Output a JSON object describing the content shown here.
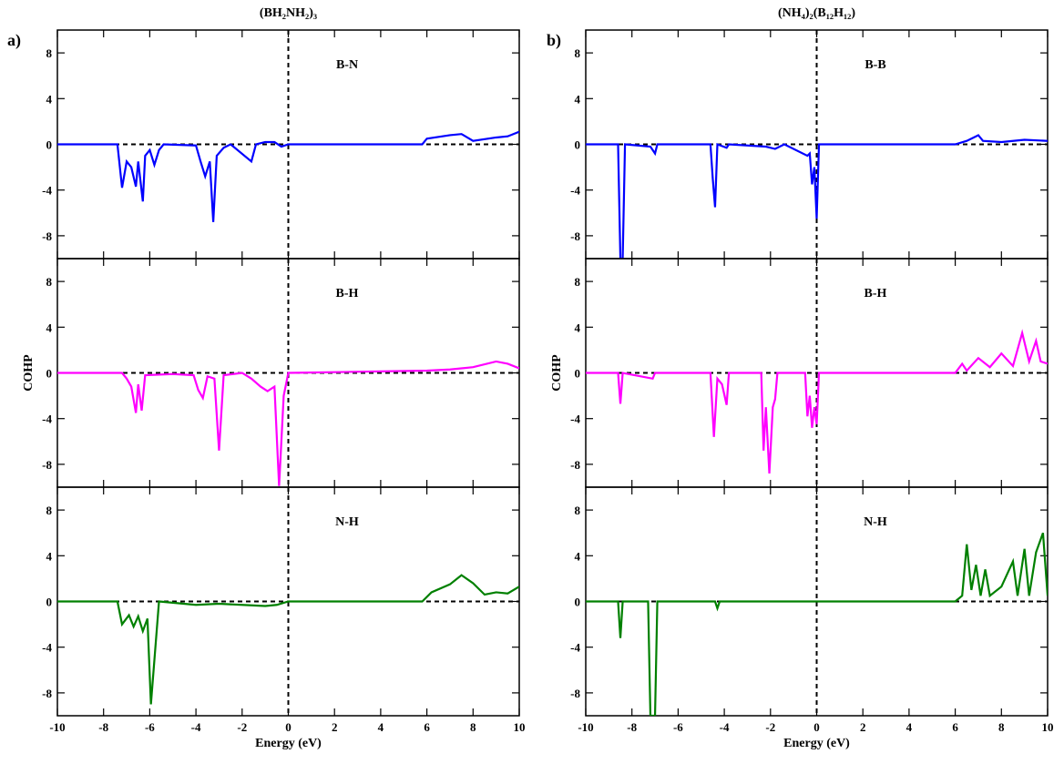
{
  "chart_data": [
    {
      "type": "line",
      "title": "(BH₂NH₂)₃",
      "panel_label": "a)",
      "annotation": "B-N",
      "x": [
        -10,
        -7.4,
        -7.2,
        -7.0,
        -6.8,
        -6.6,
        -6.5,
        -6.3,
        -6.2,
        -6.0,
        -5.8,
        -5.6,
        -5.4,
        -4,
        -3.8,
        -3.6,
        -3.4,
        -3.25,
        -3.1,
        -2.8,
        -2.5,
        -1.6,
        -1.4,
        -1,
        -0.6,
        -0.3,
        0,
        5.8,
        6,
        7,
        7.5,
        8,
        9,
        9.5,
        10
      ],
      "series": [
        {
          "color": "#0000ff",
          "values": [
            0,
            0,
            -3.8,
            -1.5,
            -2,
            -3.7,
            -1.5,
            -5,
            -1,
            -0.5,
            -1.8,
            -0.5,
            0,
            -0.1,
            -1.5,
            -2.8,
            -1.5,
            -6.8,
            -1,
            -0.3,
            0,
            -1.5,
            0,
            0.2,
            0.2,
            -0.2,
            0,
            0,
            0.5,
            0.8,
            0.9,
            0.3,
            0.6,
            0.7,
            1.1
          ]
        }
      ],
      "xlim": [
        -10,
        10
      ],
      "ylim": [
        -10,
        10
      ],
      "xticks": [
        -10,
        -8,
        -6,
        -4,
        -2,
        0,
        2,
        4,
        6,
        8,
        10
      ],
      "yticks": [
        -8,
        -4,
        0,
        4,
        8
      ]
    },
    {
      "type": "line",
      "panel_label": "b)",
      "title": "(NH₄)₂(B₁₂H₁₂)",
      "annotation": "B-B",
      "x": [
        -10,
        -8.6,
        -8.5,
        -8.4,
        -8.3,
        -7.2,
        -7,
        -6.9,
        -4.6,
        -4.5,
        -4.4,
        -4.3,
        -3.9,
        -3.8,
        -2.2,
        -1.8,
        -1.4,
        -0.4,
        -0.3,
        -0.2,
        -0.1,
        0,
        0.1,
        6,
        6.5,
        7,
        7.2,
        8,
        9,
        10
      ],
      "series": [
        {
          "color": "#0000ff",
          "values": [
            0,
            0,
            -10,
            -10,
            0,
            -0.2,
            -0.8,
            0,
            0,
            -3,
            -5.5,
            0,
            -0.3,
            0,
            -0.2,
            -0.4,
            0,
            -1,
            -0.8,
            -3.5,
            -2,
            -6.5,
            0,
            0,
            0.3,
            0.8,
            0.3,
            0.2,
            0.4,
            0.3
          ]
        }
      ],
      "xlim": [
        -10,
        10
      ],
      "ylim": [
        -10,
        10
      ],
      "xticks": [
        -10,
        -8,
        -6,
        -4,
        -2,
        0,
        2,
        4,
        6,
        8,
        10
      ],
      "yticks": [
        -8,
        -4,
        0,
        4,
        8
      ]
    },
    {
      "type": "line",
      "annotation": "B-H",
      "ylabel": "COHP",
      "x": [
        -10,
        -7.2,
        -7,
        -6.8,
        -6.6,
        -6.5,
        -6.35,
        -6.2,
        -5,
        -4.1,
        -3.9,
        -3.7,
        -3.5,
        -3.2,
        -3,
        -2.8,
        -2,
        -1.6,
        -1.2,
        -0.9,
        -0.6,
        -0.4,
        -0.2,
        0,
        6,
        7,
        8,
        9,
        9.5,
        10
      ],
      "series": [
        {
          "color": "#ff00ff",
          "values": [
            0,
            0,
            -0.5,
            -1.2,
            -3.5,
            -1,
            -3.3,
            -0.2,
            -0.1,
            -0.2,
            -1.5,
            -2.2,
            -0.3,
            -0.5,
            -6.8,
            -0.2,
            0,
            -0.5,
            -1.2,
            -1.6,
            -1.2,
            -9.9,
            -2,
            0,
            0.2,
            0.3,
            0.5,
            1,
            0.8,
            0.4
          ]
        }
      ],
      "xlim": [
        -10,
        10
      ],
      "ylim": [
        -10,
        10
      ],
      "xticks": [
        -10,
        -8,
        -6,
        -4,
        -2,
        0,
        2,
        4,
        6,
        8,
        10
      ],
      "yticks": [
        -8,
        -4,
        0,
        4,
        8
      ]
    },
    {
      "type": "line",
      "annotation": "B-H",
      "ylabel": "COHP",
      "x": [
        -10,
        -8.6,
        -8.5,
        -8.4,
        -7.1,
        -7,
        -4.6,
        -4.45,
        -4.3,
        -4.1,
        -3.9,
        -3.8,
        -2.4,
        -2.3,
        -2.2,
        -2.05,
        -1.9,
        -1.8,
        -1.7,
        -0.5,
        -0.4,
        -0.3,
        -0.2,
        -0.1,
        0,
        0.1,
        6,
        6.3,
        6.5,
        7,
        7.5,
        8,
        8.5,
        8.9,
        9.2,
        9.5,
        9.7,
        10
      ],
      "series": [
        {
          "color": "#ff00ff",
          "values": [
            0,
            0,
            -2.7,
            0,
            -0.5,
            0,
            0,
            -5.6,
            -0.5,
            -1,
            -2.8,
            0,
            0,
            -6.8,
            -3,
            -8.8,
            -3,
            -2.3,
            0,
            0,
            -3.8,
            -2,
            -4.8,
            -3,
            -4.5,
            0,
            0,
            0.8,
            0.2,
            1.3,
            0.5,
            1.7,
            0.6,
            3.5,
            1,
            2.8,
            1,
            0.8
          ]
        }
      ],
      "xlim": [
        -10,
        10
      ],
      "ylim": [
        -10,
        10
      ],
      "xticks": [
        -10,
        -8,
        -6,
        -4,
        -2,
        0,
        2,
        4,
        6,
        8,
        10
      ],
      "yticks": [
        -8,
        -4,
        0,
        4,
        8
      ]
    },
    {
      "type": "line",
      "annotation": "N-H",
      "xlabel": "Energy (eV)",
      "x": [
        -10,
        -7.4,
        -7.2,
        -6.9,
        -6.7,
        -6.5,
        -6.3,
        -6.1,
        -5.95,
        -5.6,
        -4,
        -3,
        -2,
        -1,
        -0.5,
        0,
        5.8,
        6.2,
        7,
        7.5,
        8,
        8.5,
        9,
        9.5,
        10
      ],
      "series": [
        {
          "color": "#008000",
          "values": [
            0,
            0,
            -2,
            -1.2,
            -2.2,
            -1.3,
            -2.6,
            -1.5,
            -9,
            0,
            -0.3,
            -0.2,
            -0.3,
            -0.4,
            -0.3,
            0,
            0,
            0.8,
            1.5,
            2.3,
            1.6,
            0.6,
            0.8,
            0.7,
            1.3
          ]
        }
      ],
      "xlim": [
        -10,
        10
      ],
      "ylim": [
        -10,
        10
      ],
      "xticks": [
        -10,
        -8,
        -6,
        -4,
        -2,
        0,
        2,
        4,
        6,
        8,
        10
      ],
      "yticks": [
        -8,
        -4,
        0,
        4,
        8
      ]
    },
    {
      "type": "line",
      "annotation": "N-H",
      "xlabel": "Energy (eV)",
      "x": [
        -10,
        -8.6,
        -8.5,
        -8.4,
        -7.3,
        -7.2,
        -7,
        -6.9,
        -4.4,
        -4.3,
        -4.2,
        6,
        6.3,
        6.5,
        6.7,
        6.9,
        7.1,
        7.3,
        7.5,
        8,
        8.5,
        8.7,
        9,
        9.2,
        9.5,
        9.8,
        10
      ],
      "series": [
        {
          "color": "#008000",
          "values": [
            0,
            0,
            -3.2,
            0,
            0,
            -10,
            -10,
            0,
            0,
            -0.6,
            0,
            0,
            0.5,
            5,
            1,
            3.2,
            0.5,
            2.8,
            0.5,
            1.3,
            3.5,
            0.5,
            4.6,
            0.5,
            4.3,
            6,
            0.5
          ]
        }
      ],
      "xlim": [
        -10,
        10
      ],
      "ylim": [
        -10,
        10
      ],
      "xticks": [
        -10,
        -8,
        -6,
        -4,
        -2,
        0,
        2,
        4,
        6,
        8,
        10
      ],
      "yticks": [
        -8,
        -4,
        0,
        4,
        8
      ]
    }
  ]
}
